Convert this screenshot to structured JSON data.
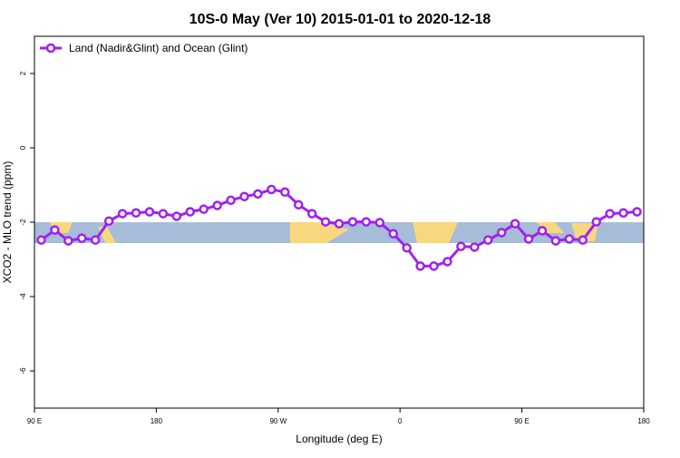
{
  "chart_data": {
    "type": "line",
    "title": "10S-0 May (Ver 10)   2015-01-01 to 2020-12-18",
    "xlabel": "Longitude (deg E)",
    "ylabel": "XCO2 - MLO trend (ppm)",
    "x": [
      95,
      105,
      115,
      125,
      135,
      145,
      155,
      165,
      175,
      185,
      195,
      205,
      215,
      225,
      235,
      245,
      255,
      265,
      275,
      285,
      295,
      305,
      315,
      325,
      335,
      345,
      355,
      365,
      375,
      385,
      395,
      405,
      415,
      425,
      435,
      445,
      455,
      465,
      475,
      485,
      495,
      505,
      515,
      525,
      535
    ],
    "series": [
      {
        "name": "Land (Nadir&Glint) and Ocean (Glint)",
        "color": "#a020f0",
        "values": [
          -2.48,
          -2.21,
          -2.5,
          -2.43,
          -2.48,
          -1.97,
          -1.77,
          -1.75,
          -1.72,
          -1.77,
          -1.84,
          -1.72,
          -1.65,
          -1.55,
          -1.41,
          -1.31,
          -1.24,
          -1.12,
          -1.19,
          -1.53,
          -1.77,
          -1.99,
          -2.04,
          -1.99,
          -1.99,
          -2.01,
          -2.31,
          -2.69,
          -3.18,
          -3.18,
          -3.06,
          -2.65,
          -2.67,
          -2.48,
          -2.28,
          -2.04,
          -2.45,
          -2.23,
          -2.5,
          -2.45,
          -2.48,
          -1.99,
          -1.77,
          -1.75,
          -1.72
        ]
      }
    ],
    "xlim": [
      90,
      540
    ],
    "xticks": [
      {
        "value": 90,
        "label": "90 E"
      },
      180,
      {
        "value": 270,
        "label": "90 W"
      },
      {
        "value": 360,
        "label": "0"
      },
      {
        "value": 450,
        "label": "90 E"
      },
      {
        "value": 540,
        "label": "180"
      }
    ],
    "ylim": [
      -7,
      3
    ],
    "yticks": [
      -6,
      -4,
      -2,
      0,
      2
    ],
    "legend": "top-left"
  }
}
